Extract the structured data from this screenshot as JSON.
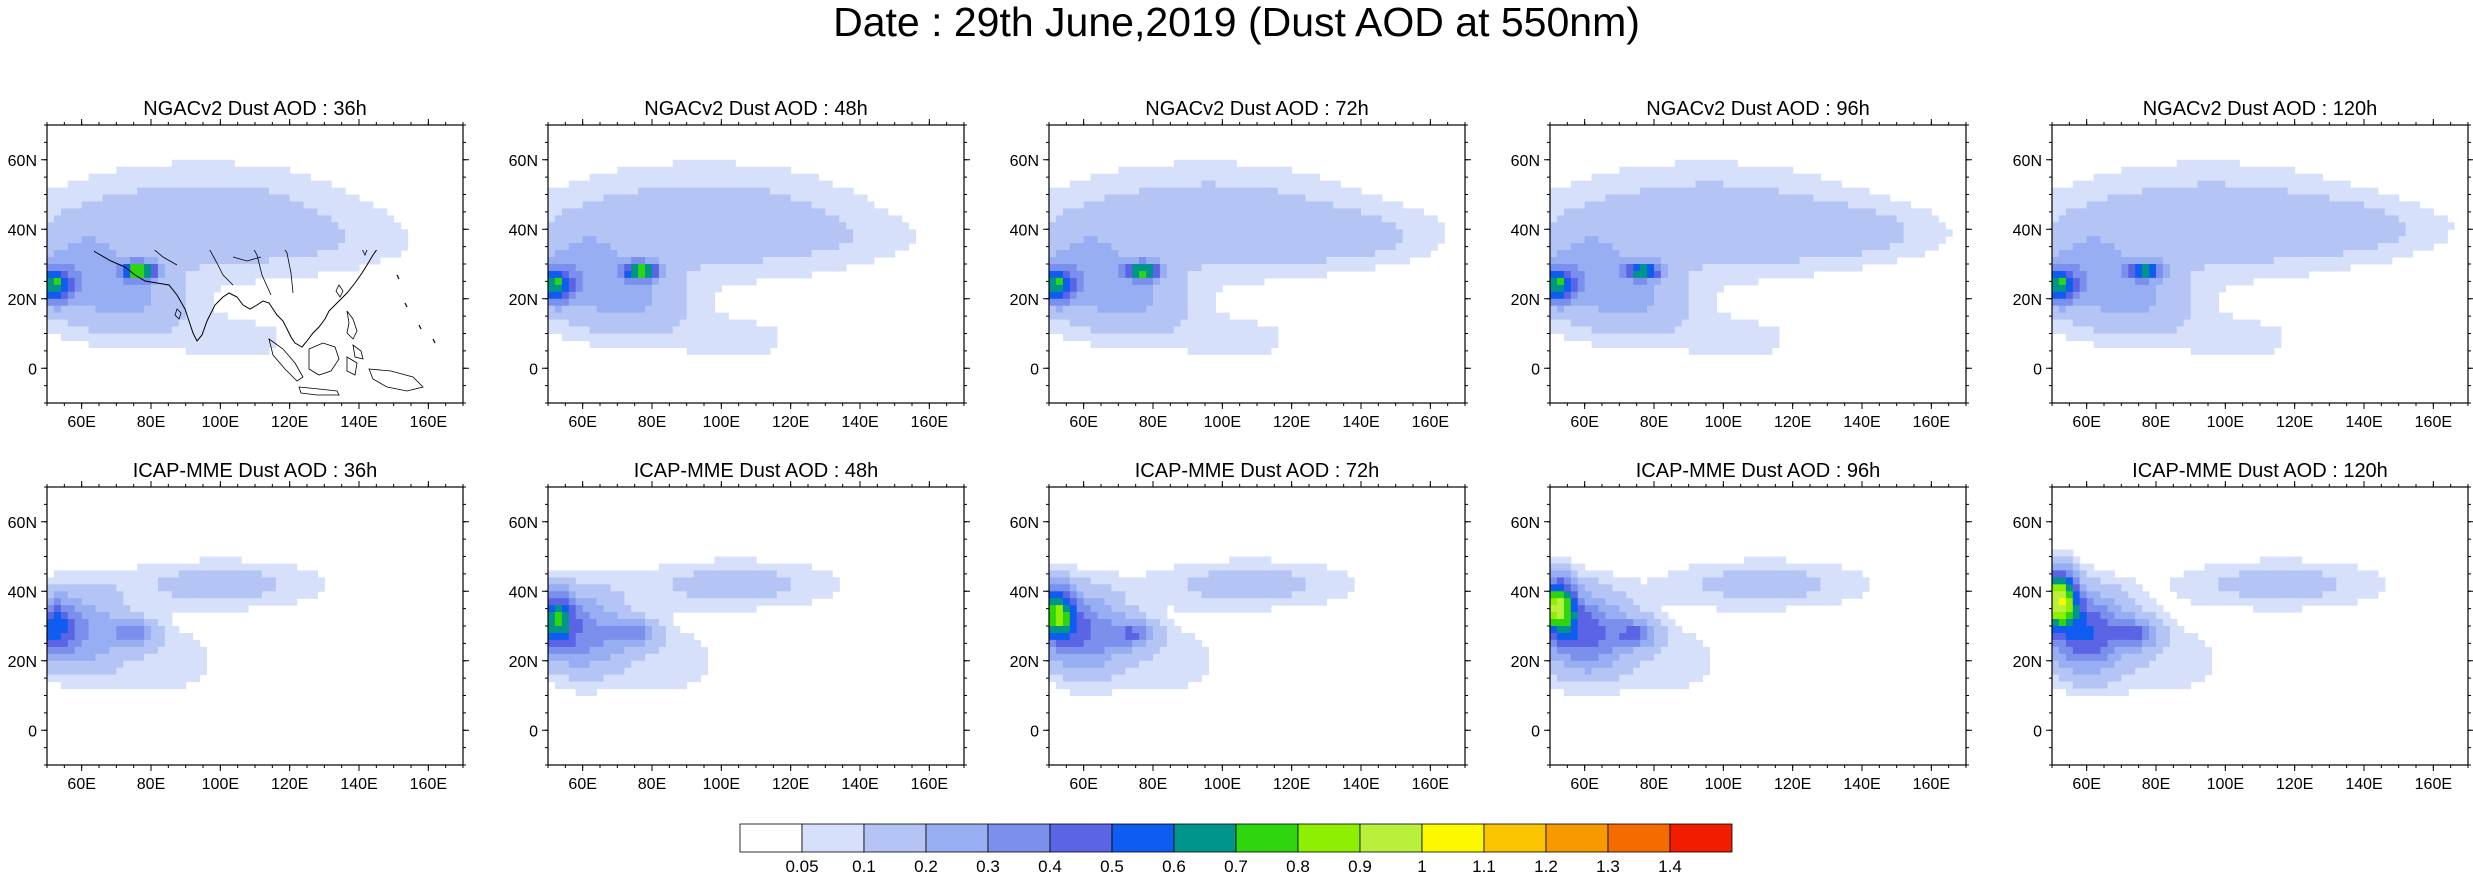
{
  "figure": {
    "title": "Date : 29th June,2019 (Dust AOD at 550nm)"
  },
  "map_extent": {
    "lon_min": 50,
    "lon_max": 170,
    "lat_min": -10,
    "lat_max": 70
  },
  "lon_ticks": [
    {
      "value": 60,
      "label": "60E"
    },
    {
      "value": 80,
      "label": "80E"
    },
    {
      "value": 100,
      "label": "100E"
    },
    {
      "value": 120,
      "label": "120E"
    },
    {
      "value": 140,
      "label": "140E"
    },
    {
      "value": 160,
      "label": "160E"
    }
  ],
  "lat_ticks": [
    {
      "value": 60,
      "label": "60N"
    },
    {
      "value": 40,
      "label": "40N"
    },
    {
      "value": 20,
      "label": "20N"
    },
    {
      "value": 0,
      "label": "0"
    }
  ],
  "panels": [
    {
      "title": "NGACv2 Dust AOD : 36h",
      "model": "ngac",
      "variant": 0
    },
    {
      "title": "NGACv2 Dust AOD : 48h",
      "model": "ngac",
      "variant": 1
    },
    {
      "title": "NGACv2 Dust AOD : 72h",
      "model": "ngac",
      "variant": 2
    },
    {
      "title": "NGACv2 Dust AOD : 96h",
      "model": "ngac",
      "variant": 3
    },
    {
      "title": "NGACv2 Dust AOD : 120h",
      "model": "ngac",
      "variant": 4
    },
    {
      "title": "ICAP-MME Dust AOD : 36h",
      "model": "icap",
      "variant": 0
    },
    {
      "title": "ICAP-MME Dust AOD : 48h",
      "model": "icap",
      "variant": 1
    },
    {
      "title": "ICAP-MME Dust AOD : 72h",
      "model": "icap",
      "variant": 2
    },
    {
      "title": "ICAP-MME Dust AOD : 96h",
      "model": "icap",
      "variant": 3
    },
    {
      "title": "ICAP-MME Dust AOD : 120h",
      "model": "icap",
      "variant": 4
    }
  ],
  "colorbar": {
    "levels": [
      "0.05",
      "0.1",
      "0.2",
      "0.3",
      "0.4",
      "0.5",
      "0.6",
      "0.7",
      "0.8",
      "0.9",
      "1",
      "1.1",
      "1.2",
      "1.3",
      "1.4"
    ],
    "colors": [
      "#ffffff",
      "#d6e0fb",
      "#b4c5f5",
      "#97aef2",
      "#7b90ed",
      "#5a64e4",
      "#0f5cf0",
      "#00958c",
      "#2ed60f",
      "#8ef000",
      "#b9f03c",
      "#fbf800",
      "#f9c400",
      "#f79a00",
      "#f46b00",
      "#f21c00"
    ]
  }
}
